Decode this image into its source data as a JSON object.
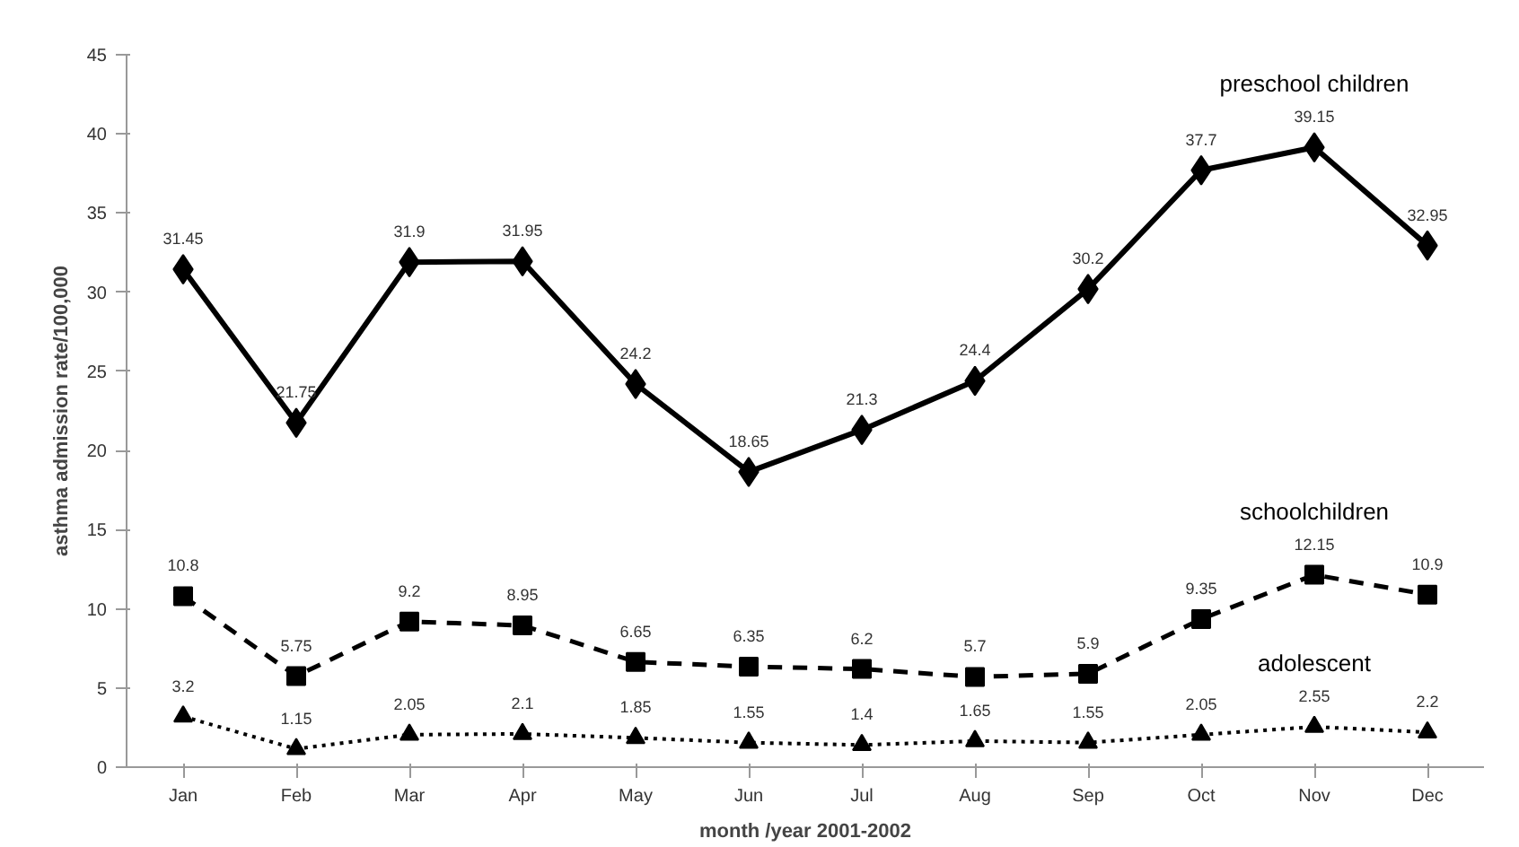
{
  "chart_data": {
    "type": "line",
    "xlabel": "month /year 2001-2002",
    "ylabel": "asthma admission rate/100,000",
    "categories": [
      "Jan",
      "Feb",
      "Mar",
      "Apr",
      "May",
      "Jun",
      "Jul",
      "Aug",
      "Sep",
      "Oct",
      "Nov",
      "Dec"
    ],
    "series": [
      {
        "name": "preschool children",
        "color": "#000000",
        "marker": "diamond",
        "line_style": "solid",
        "values": [
          31.45,
          21.75,
          31.9,
          31.95,
          24.2,
          18.65,
          21.3,
          24.4,
          30.2,
          37.7,
          39.15,
          32.95
        ]
      },
      {
        "name": "schoolchildren",
        "color": "#000000",
        "marker": "square",
        "line_style": "dashed",
        "values": [
          10.8,
          5.75,
          9.2,
          8.95,
          6.65,
          6.35,
          6.2,
          5.7,
          5.9,
          9.35,
          12.15,
          10.9
        ]
      },
      {
        "name": "adolescent",
        "color": "#000000",
        "marker": "triangle",
        "line_style": "dotted",
        "values": [
          3.2,
          1.15,
          2.05,
          2.1,
          1.85,
          1.55,
          1.4,
          1.65,
          1.55,
          2.05,
          2.55,
          2.2
        ]
      }
    ],
    "ylim": [
      0,
      45
    ],
    "yticks": [
      0,
      5,
      10,
      15,
      20,
      25,
      30,
      35,
      40,
      45
    ],
    "data_labels": true,
    "grid": false
  }
}
